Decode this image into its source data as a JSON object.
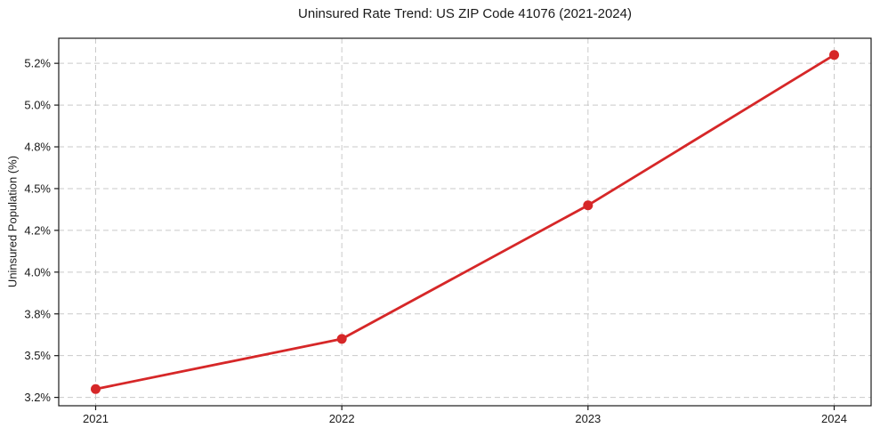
{
  "chart_data": {
    "type": "line",
    "title": "Uninsured Rate Trend: US ZIP Code 41076 (2021-2024)",
    "xlabel": "",
    "ylabel": "Uninsured Population (%)",
    "x": [
      2021,
      2022,
      2023,
      2024
    ],
    "series": [
      {
        "name": "Uninsured rate",
        "values": [
          3.3,
          3.6,
          4.4,
          5.3
        ]
      }
    ],
    "xlim": [
      2020.85,
      2024.15
    ],
    "ylim": [
      3.2,
      5.4
    ],
    "x_ticks": [
      {
        "value": 2021,
        "label": "2021"
      },
      {
        "value": 2022,
        "label": "2022"
      },
      {
        "value": 2023,
        "label": "2023"
      },
      {
        "value": 2024,
        "label": "2024"
      }
    ],
    "y_ticks": [
      {
        "value": 3.25,
        "label": "3.2%"
      },
      {
        "value": 3.5,
        "label": "3.5%"
      },
      {
        "value": 3.75,
        "label": "3.8%"
      },
      {
        "value": 4.0,
        "label": "4.0%"
      },
      {
        "value": 4.25,
        "label": "4.2%"
      },
      {
        "value": 4.5,
        "label": "4.5%"
      },
      {
        "value": 4.75,
        "label": "4.8%"
      },
      {
        "value": 5.0,
        "label": "5.0%"
      },
      {
        "value": 5.25,
        "label": "5.2%"
      }
    ],
    "grid": true,
    "legend": "none",
    "marker": "circle",
    "colors": {
      "line": "#d62728",
      "marker": "#d62728",
      "grid": "#c9c9c9",
      "spine": "#1a1a1a",
      "text": "#1a1a1a"
    }
  }
}
